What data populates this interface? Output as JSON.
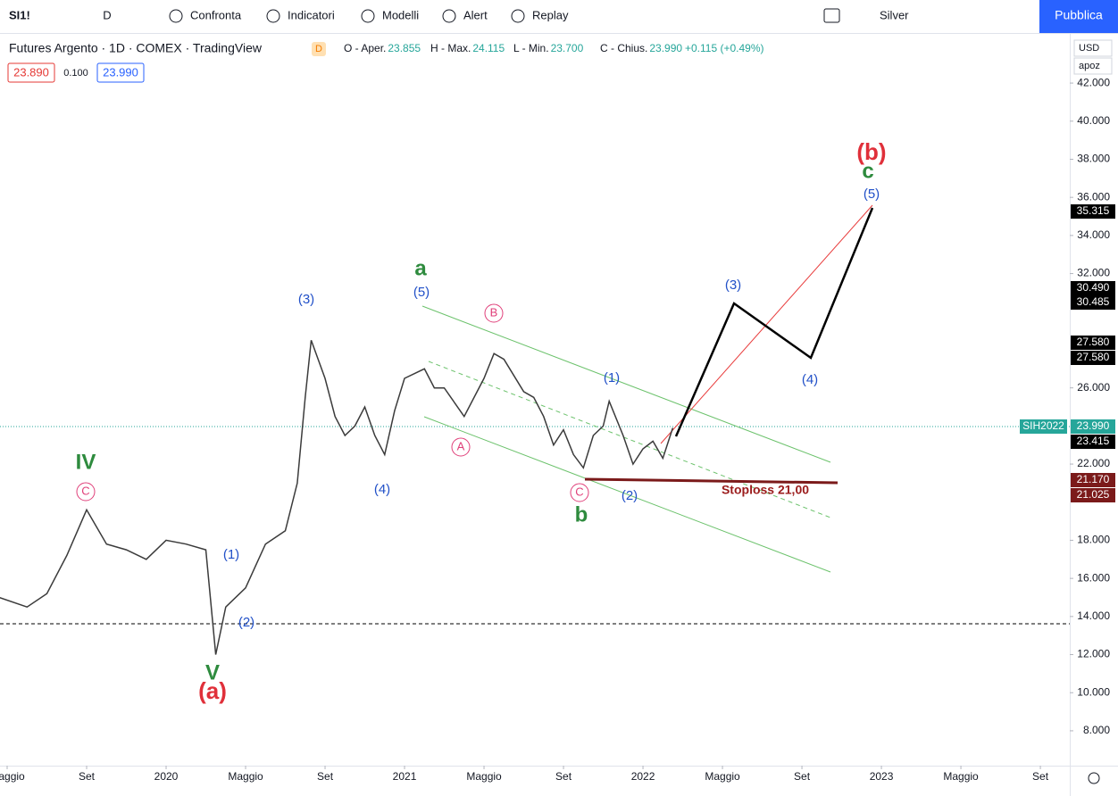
{
  "toolbar": {
    "symbol": "SI1!",
    "interval": "D",
    "buttons": [
      "Confronta",
      "Indicatori",
      "Modelli",
      "Alert",
      "Replay"
    ],
    "layout": "Silver",
    "publish": "Pubblica"
  },
  "legend": {
    "title": "Futures Argento · 1D · COMEX · TradingView",
    "badge": "D",
    "ohlc": [
      {
        "label": "O - Aper.",
        "value": "23.855"
      },
      {
        "label": "H - Max.",
        "value": "24.115"
      },
      {
        "label": "L - Min.",
        "value": "23.700"
      },
      {
        "label": "C - Chius.",
        "value": "23.990"
      }
    ],
    "change": "+0.115 (+0.49%)",
    "bid": "23.890",
    "spread": "0.100",
    "ask": "23.990"
  },
  "scale_controls": [
    "USD",
    "apoz"
  ],
  "chart_data": {
    "type": "line",
    "color": "#3b3b3b",
    "x": [
      3.6,
      5,
      6,
      7,
      8,
      9,
      10,
      11,
      12,
      13,
      14,
      14.5,
      15,
      16,
      17,
      18,
      18.6,
      19,
      19.3,
      20,
      20.5,
      21,
      21.5,
      22,
      22.5,
      23,
      23.5,
      24,
      25,
      25.5,
      26,
      27,
      28,
      28.5,
      29,
      30,
      30.5,
      31,
      31.5,
      32,
      32.5,
      33,
      33.5,
      34,
      34.3,
      35,
      35.5,
      36,
      36.5,
      37,
      37.5
    ],
    "values": [
      15.0,
      14.5,
      15.2,
      17.2,
      19.6,
      17.8,
      17.5,
      17.0,
      18.0,
      17.8,
      17.5,
      12.0,
      14.5,
      15.5,
      17.8,
      18.5,
      21.0,
      25.5,
      28.5,
      26.5,
      24.5,
      23.5,
      24.0,
      25.0,
      23.5,
      22.5,
      24.8,
      26.5,
      27.0,
      26.0,
      26.0,
      24.5,
      26.5,
      27.8,
      27.5,
      25.8,
      25.5,
      24.5,
      23.0,
      23.8,
      22.5,
      21.8,
      23.5,
      24.0,
      25.3,
      23.5,
      22.0,
      22.8,
      23.2,
      22.3,
      23.9
    ],
    "xlim": [
      3.64,
      57.48
    ],
    "xticks": [
      {
        "value": 4,
        "label": "Maggio"
      },
      {
        "value": 8,
        "label": "Set"
      },
      {
        "value": 12,
        "label": "2020"
      },
      {
        "value": 16,
        "label": "Maggio"
      },
      {
        "value": 20,
        "label": "Set"
      },
      {
        "value": 24,
        "label": "2021"
      },
      {
        "value": 28,
        "label": "Maggio"
      },
      {
        "value": 32,
        "label": "Set"
      },
      {
        "value": 36,
        "label": "2022"
      },
      {
        "value": 40,
        "label": "Maggio"
      },
      {
        "value": 44,
        "label": "Set"
      },
      {
        "value": 48,
        "label": "2023"
      },
      {
        "value": 52,
        "label": "Maggio"
      },
      {
        "value": 56,
        "label": "Set"
      }
    ],
    "ylim": [
      6.17,
      44.58
    ],
    "yticks": [
      {
        "value": 42,
        "label": "42.000"
      },
      {
        "value": 40,
        "label": "40.000"
      },
      {
        "value": 38,
        "label": "38.000"
      },
      {
        "value": 36,
        "label": "36.000"
      },
      {
        "value": 34,
        "label": "34.000"
      },
      {
        "value": 32,
        "label": "32.000"
      },
      {
        "value": 26,
        "label": "26.000"
      },
      {
        "value": 22,
        "label": "22.000"
      },
      {
        "value": 18,
        "label": "18.000"
      },
      {
        "value": 16,
        "label": "16.000"
      },
      {
        "value": 14,
        "label": "14.000"
      },
      {
        "value": 12,
        "label": "12.000"
      },
      {
        "value": 10,
        "label": "10.000"
      },
      {
        "value": 8,
        "label": "8.000"
      }
    ],
    "price_tags": [
      {
        "label": "35.315",
        "color": "#000000"
      },
      {
        "label": "30.490",
        "color": "#000000"
      },
      {
        "label": "30.485",
        "color": "#000000"
      },
      {
        "label": "27.580",
        "color": "#000000"
      },
      {
        "label": "27.580",
        "color": "#000000"
      },
      {
        "label": "SIH2022",
        "color": "#26a69a"
      },
      {
        "label": "23.990",
        "color": "#26a69a"
      },
      {
        "label": "23.415",
        "color": "#000000"
      },
      {
        "label": "21.170",
        "color": "#7b1a1a"
      },
      {
        "label": "21.025",
        "color": "#7b1a1a"
      }
    ],
    "annotations": [
      {
        "text": "IV",
        "color": "#2e8b3e"
      },
      {
        "text": "C",
        "color": "#e0407a"
      },
      {
        "text": "V",
        "color": "#2e8b3e"
      },
      {
        "text": "(a)",
        "color": "#e0303a"
      },
      {
        "text": "(1)",
        "color": "#2150c8"
      },
      {
        "text": "(2)",
        "color": "#2150c8"
      },
      {
        "text": "(3)",
        "color": "#2150c8"
      },
      {
        "text": "(4)",
        "color": "#2150c8"
      },
      {
        "text": "a",
        "color": "#2e8b3e"
      },
      {
        "text": "(5)",
        "color": "#2150c8"
      },
      {
        "text": "B",
        "color": "#e0407a"
      },
      {
        "text": "A",
        "color": "#e0407a"
      },
      {
        "text": "C",
        "color": "#e0407a"
      },
      {
        "text": "b",
        "color": "#2e8b3e"
      },
      {
        "text": "(1)",
        "color": "#2150c8"
      },
      {
        "text": "(2)",
        "color": "#2150c8"
      },
      {
        "text": "(3)",
        "color": "#2150c8"
      },
      {
        "text": "(4)",
        "color": "#2150c8"
      },
      {
        "text": "(5)",
        "color": "#2150c8"
      },
      {
        "text": "c",
        "color": "#2e8b3e"
      },
      {
        "text": "(b)",
        "color": "#e0303a"
      },
      {
        "text": "Stoploss 21,00",
        "color": "#9b1c1c"
      }
    ]
  }
}
